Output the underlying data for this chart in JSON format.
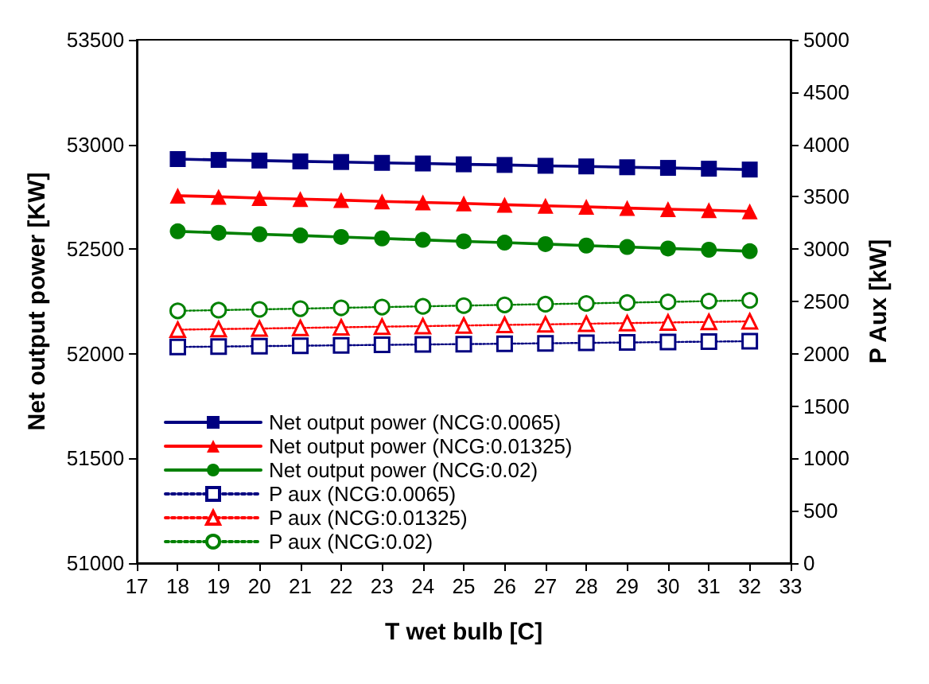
{
  "chart_data": {
    "type": "line",
    "xlabel": "T wet bulb [C]",
    "ylabel": "Net output power [KW]",
    "y2label": "P Aux [kW]",
    "x": [
      18,
      19,
      20,
      21,
      22,
      23,
      24,
      25,
      26,
      27,
      28,
      29,
      30,
      31,
      32
    ],
    "xlim": [
      17,
      33
    ],
    "xticks": [
      17,
      18,
      19,
      20,
      21,
      22,
      23,
      24,
      25,
      26,
      27,
      28,
      29,
      30,
      31,
      32,
      33
    ],
    "ylim": [
      51000,
      53500
    ],
    "yticks": [
      51000,
      51500,
      52000,
      52500,
      53000,
      53500
    ],
    "y2lim": [
      0,
      5000
    ],
    "y2ticks": [
      0,
      500,
      1000,
      1500,
      2000,
      2500,
      3000,
      3500,
      4000,
      4500,
      5000
    ],
    "grid": false,
    "legend": "bottom left",
    "series": [
      {
        "name": "Net output power (NCG:0.0065)",
        "color": "#000080",
        "marker": "square",
        "line_style": "solid",
        "values": [
          52930,
          52926,
          52923,
          52919,
          52916,
          52912,
          52909,
          52905,
          52902,
          52898,
          52895,
          52891,
          52888,
          52884,
          52880
        ]
      },
      {
        "name": "Net output power (NCG:0.01325)",
        "color": "#ff0000",
        "marker": "triangle",
        "line_style": "solid",
        "values": [
          52755,
          52750,
          52744,
          52739,
          52734,
          52728,
          52723,
          52718,
          52712,
          52707,
          52702,
          52696,
          52691,
          52686,
          52680
        ]
      },
      {
        "name": "Net output power (NCG:0.02)",
        "color": "#008000",
        "marker": "circle",
        "line_style": "solid",
        "values": [
          52585,
          52578,
          52571,
          52565,
          52558,
          52551,
          52544,
          52537,
          52531,
          52524,
          52517,
          52510,
          52503,
          52497,
          52490
        ]
      },
      {
        "name": "P aux (NCG:0.0065)",
        "color": "#000080",
        "marker": "square",
        "line_style": "dotted",
        "axis": "y2",
        "values": [
          2065,
          2069,
          2073,
          2077,
          2081,
          2085,
          2089,
          2092,
          2096,
          2100,
          2104,
          2108,
          2112,
          2116,
          2120
        ]
      },
      {
        "name": "P aux (NCG:0.01325)",
        "color": "#ff0000",
        "marker": "triangle",
        "line_style": "dotted",
        "axis": "y2",
        "values": [
          2230,
          2236,
          2241,
          2247,
          2253,
          2259,
          2264,
          2270,
          2276,
          2281,
          2287,
          2293,
          2299,
          2304,
          2310
        ]
      },
      {
        "name": "P aux (NCG:0.02)",
        "color": "#008000",
        "marker": "circle",
        "line_style": "dotted",
        "axis": "y2",
        "values": [
          2410,
          2417,
          2424,
          2431,
          2439,
          2446,
          2453,
          2460,
          2467,
          2474,
          2481,
          2489,
          2496,
          2503,
          2510
        ]
      }
    ]
  }
}
